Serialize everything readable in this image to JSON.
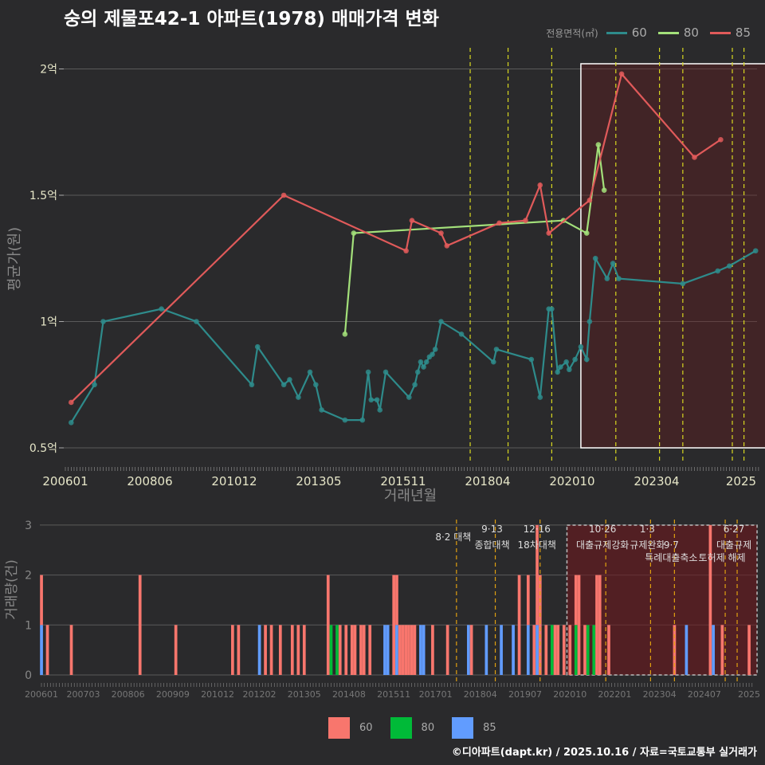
{
  "title": "숭의 제물포42-1 아파트(1978) 매매가격 변화",
  "legend": {
    "title": "전용면적(㎡)",
    "items": [
      {
        "label": "60",
        "color": "#2e8b8b"
      },
      {
        "label": "80",
        "color": "#a3e07a"
      },
      {
        "label": "85",
        "color": "#e05a5a"
      }
    ]
  },
  "footer": "©디아파트(dapt.kr) / 2025.10.16 / 자료=국토교통부 실거래가",
  "chart_data": [
    {
      "type": "line",
      "title": "숭의 제물포42-1 아파트(1978) 매매가격 변화",
      "xlabel": "거래년월",
      "ylabel": "평균가(원)",
      "xticks": [
        "200601",
        "200806",
        "201012",
        "201305",
        "201511",
        "201804",
        "202010",
        "202304",
        "2025"
      ],
      "yticks": [
        {
          "v": 0.5,
          "label": "0.5억"
        },
        {
          "v": 1,
          "label": "1억"
        },
        {
          "v": 1.5,
          "label": "1.5억"
        },
        {
          "v": 2,
          "label": "2억"
        }
      ],
      "ylim": [
        0.42,
        2.12
      ],
      "xlim": [
        "200601",
        "202511"
      ],
      "highlight": [
        "202010",
        "202510"
      ],
      "policy_months": [
        "201708",
        "201809",
        "201912",
        "202110",
        "202301",
        "202309",
        "202502",
        "202506"
      ],
      "series": [
        {
          "name": "60",
          "color": "#2e8b8b",
          "points": [
            [
              "200603",
              0.6
            ],
            [
              "200611",
              0.75
            ],
            [
              "200702",
              1.0
            ],
            [
              "200810",
              1.05
            ],
            [
              "200910",
              1.0
            ],
            [
              "201105",
              0.75
            ],
            [
              "201107",
              0.9
            ],
            [
              "201204",
              0.75
            ],
            [
              "201206",
              0.77
            ],
            [
              "201209",
              0.7
            ],
            [
              "201301",
              0.8
            ],
            [
              "201303",
              0.75
            ],
            [
              "201305",
              0.65
            ],
            [
              "201401",
              0.61
            ],
            [
              "201407",
              0.61
            ],
            [
              "201409",
              0.8
            ],
            [
              "201410",
              0.69
            ],
            [
              "201412",
              0.69
            ],
            [
              "201501",
              0.65
            ],
            [
              "201503",
              0.8
            ],
            [
              "201511",
              0.7
            ],
            [
              "201601",
              0.75
            ],
            [
              "201602",
              0.8
            ],
            [
              "201603",
              0.84
            ],
            [
              "201604",
              0.82
            ],
            [
              "201605",
              0.84
            ],
            [
              "201606",
              0.86
            ],
            [
              "201607",
              0.87
            ],
            [
              "201608",
              0.89
            ],
            [
              "201610",
              1.0
            ],
            [
              "201705",
              0.95
            ],
            [
              "201804",
              0.84
            ],
            [
              "201805",
              0.89
            ],
            [
              "201905",
              0.85
            ],
            [
              "201908",
              0.7
            ],
            [
              "201911",
              1.05
            ],
            [
              "201912",
              1.05
            ],
            [
              "202002",
              0.8
            ],
            [
              "202003",
              0.82
            ],
            [
              "202005",
              0.84
            ],
            [
              "202006",
              0.81
            ],
            [
              "202008",
              0.85
            ],
            [
              "202010",
              0.9
            ],
            [
              "202012",
              0.85
            ],
            [
              "202101",
              1.0
            ],
            [
              "202103",
              1.25
            ],
            [
              "202107",
              1.17
            ],
            [
              "202109",
              1.23
            ],
            [
              "202111",
              1.17
            ],
            [
              "202309",
              1.15
            ],
            [
              "202409",
              1.2
            ],
            [
              "202501",
              1.22
            ],
            [
              "202510",
              1.28
            ]
          ]
        },
        {
          "name": "80",
          "color": "#a3e07a",
          "points": [
            [
              "201401",
              0.95
            ],
            [
              "201404",
              1.35
            ],
            [
              "202004",
              1.4
            ],
            [
              "202012",
              1.35
            ],
            [
              "202104",
              1.7
            ],
            [
              "202106",
              1.52
            ]
          ]
        },
        {
          "name": "85",
          "color": "#e05a5a",
          "points": [
            [
              "200603",
              0.68
            ],
            [
              "201204",
              1.5
            ],
            [
              "201510",
              1.28
            ],
            [
              "201512",
              1.4
            ],
            [
              "201610",
              1.35
            ],
            [
              "201612",
              1.3
            ],
            [
              "201806",
              1.39
            ],
            [
              "201903",
              1.4
            ],
            [
              "201908",
              1.54
            ],
            [
              "201911",
              1.35
            ],
            [
              "202101",
              1.48
            ],
            [
              "202112",
              1.98
            ],
            [
              "202401",
              1.65
            ],
            [
              "202410",
              1.72
            ]
          ]
        }
      ]
    },
    {
      "type": "bar",
      "ylabel": "거래량(건)",
      "ylim": [
        0,
        3
      ],
      "yticks": [
        "0",
        "1",
        "2",
        "3"
      ],
      "xticks": [
        "200601",
        "200703",
        "200806",
        "200909",
        "201012",
        "201202",
        "201305",
        "201408",
        "201511",
        "201701",
        "201804",
        "201907",
        "202010",
        "202201",
        "202304",
        "202407",
        "2025"
      ],
      "legend": [
        {
          "label": "60",
          "color": "#f8766d"
        },
        {
          "label": "80",
          "color": "#00ba38"
        },
        {
          "label": "85",
          "color": "#619cff"
        }
      ],
      "highlight": [
        "202009",
        "202510"
      ],
      "policies": [
        {
          "ym": "201708",
          "date": "8·2 대책",
          "name": ""
        },
        {
          "ym": "201809",
          "date": "9·13",
          "name": "종합대책"
        },
        {
          "ym": "201912",
          "date": "12·16",
          "name": "18차대책"
        },
        {
          "ym": "202110",
          "date": "10·26",
          "name": "대출규제강화"
        },
        {
          "ym": "202301",
          "date": "1·3",
          "name": "규제완화"
        },
        {
          "ym": "202309",
          "date": "9·7",
          "name": "특례대출축소"
        },
        {
          "ym": "202502",
          "date": "",
          "name": "토허제 해제"
        },
        {
          "ym": "202506",
          "date": "6·27",
          "name": "대출규제"
        }
      ],
      "bars": [
        [
          "200601",
          1,
          0,
          1
        ],
        [
          "200603",
          1,
          0,
          0
        ],
        [
          "200611",
          1,
          0,
          0
        ],
        [
          "200810",
          2,
          0,
          0
        ],
        [
          "200910",
          1,
          0,
          0
        ],
        [
          "201105",
          1,
          0,
          0
        ],
        [
          "201107",
          1,
          0,
          0
        ],
        [
          "201202",
          0,
          0,
          1
        ],
        [
          "201204",
          1,
          0,
          0
        ],
        [
          "201206",
          1,
          0,
          0
        ],
        [
          "201209",
          1,
          0,
          0
        ],
        [
          "201301",
          1,
          0,
          0
        ],
        [
          "201303",
          1,
          0,
          0
        ],
        [
          "201305",
          1,
          0,
          0
        ],
        [
          "201401",
          2,
          0,
          0
        ],
        [
          "201402",
          0,
          1,
          0
        ],
        [
          "201404",
          0,
          1,
          0
        ],
        [
          "201405",
          1,
          0,
          0
        ],
        [
          "201407",
          1,
          0,
          0
        ],
        [
          "201409",
          1,
          0,
          0
        ],
        [
          "201410",
          1,
          0,
          0
        ],
        [
          "201412",
          1,
          0,
          0
        ],
        [
          "201501",
          1,
          0,
          0
        ],
        [
          "201503",
          1,
          0,
          0
        ],
        [
          "201508",
          0,
          0,
          1
        ],
        [
          "201509",
          0,
          0,
          1
        ],
        [
          "201511",
          2,
          0,
          0
        ],
        [
          "201512",
          1,
          0,
          1
        ],
        [
          "201601",
          1,
          0,
          0
        ],
        [
          "201602",
          1,
          0,
          0
        ],
        [
          "201603",
          1,
          0,
          0
        ],
        [
          "201604",
          1,
          0,
          0
        ],
        [
          "201605",
          1,
          0,
          0
        ],
        [
          "201606",
          1,
          0,
          0
        ],
        [
          "201608",
          0,
          0,
          1
        ],
        [
          "201609",
          0,
          0,
          1
        ],
        [
          "201612",
          1,
          0,
          0
        ],
        [
          "201705",
          1,
          0,
          0
        ],
        [
          "201712",
          0,
          0,
          1
        ],
        [
          "201801",
          1,
          0,
          0
        ],
        [
          "201806",
          0,
          0,
          1
        ],
        [
          "201811",
          0,
          0,
          1
        ],
        [
          "201903",
          0,
          0,
          1
        ],
        [
          "201905",
          2,
          0,
          0
        ],
        [
          "201908",
          1,
          0,
          1
        ],
        [
          "201910",
          1,
          0,
          0
        ],
        [
          "201911",
          2,
          0,
          1
        ],
        [
          "201912",
          2,
          0,
          0
        ],
        [
          "202002",
          1,
          0,
          0
        ],
        [
          "202004",
          0,
          1,
          0
        ],
        [
          "202005",
          1,
          0,
          0
        ],
        [
          "202006",
          1,
          0,
          0
        ],
        [
          "202008",
          1,
          0,
          0
        ],
        [
          "202010",
          1,
          0,
          0
        ],
        [
          "202012",
          1,
          1,
          0
        ],
        [
          "202101",
          2,
          0,
          0
        ],
        [
          "202103",
          1,
          0,
          0
        ],
        [
          "202104",
          0,
          1,
          0
        ],
        [
          "202106",
          0,
          1,
          0
        ],
        [
          "202107",
          2,
          0,
          0
        ],
        [
          "202108",
          2,
          0,
          0
        ],
        [
          "202111",
          1,
          0,
          0
        ],
        [
          "202309",
          1,
          0,
          0
        ],
        [
          "202401",
          0,
          0,
          1
        ],
        [
          "202409",
          3,
          0,
          0
        ],
        [
          "202410",
          0,
          0,
          1
        ],
        [
          "202501",
          1,
          0,
          0
        ],
        [
          "202510",
          1,
          0,
          0
        ]
      ]
    }
  ]
}
